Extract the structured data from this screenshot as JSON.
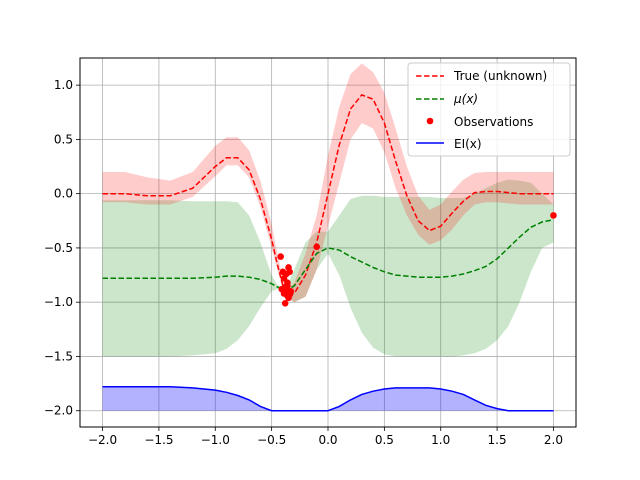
{
  "chart_data": {
    "type": "line",
    "title": "",
    "xlabel": "",
    "ylabel": "",
    "xlim": [
      -2.2,
      2.2
    ],
    "ylim": [
      -2.15,
      1.25
    ],
    "grid": true,
    "legend_position": "top-right",
    "xticks": [
      -2.0,
      -1.5,
      -1.0,
      -0.5,
      0.0,
      0.5,
      1.0,
      1.5,
      2.0
    ],
    "xtick_labels": [
      "−2.0",
      "−1.5",
      "−1.0",
      "−0.5",
      "0.0",
      "0.5",
      "1.0",
      "1.5",
      "2.0"
    ],
    "yticks": [
      -2.0,
      -1.5,
      -1.0,
      -0.5,
      0.0,
      0.5,
      1.0
    ],
    "ytick_labels": [
      "−2.0",
      "−1.5",
      "−1.0",
      "−0.5",
      "0.0",
      "0.5",
      "1.0"
    ],
    "legend": [
      {
        "label": "True (unknown)",
        "kind": "dashed",
        "color": "#ff0000"
      },
      {
        "label_pre": "μ",
        "label_italic": "(x)",
        "kind": "dashed",
        "color": "#008000"
      },
      {
        "label": "Observations",
        "kind": "dot",
        "color": "#ff0000"
      },
      {
        "label": "EI(x)",
        "kind": "solid",
        "color": "#0000ff"
      }
    ],
    "x": [
      -2.0,
      -1.8,
      -1.6,
      -1.4,
      -1.2,
      -1.0,
      -0.9,
      -0.8,
      -0.7,
      -0.6,
      -0.5,
      -0.45,
      -0.4,
      -0.35,
      -0.3,
      -0.2,
      -0.1,
      0.0,
      0.1,
      0.2,
      0.3,
      0.4,
      0.5,
      0.6,
      0.7,
      0.8,
      0.9,
      1.0,
      1.1,
      1.2,
      1.3,
      1.4,
      1.5,
      1.6,
      1.7,
      1.8,
      1.9,
      2.0
    ],
    "series": [
      {
        "name": "True (unknown)",
        "color": "#ff0000",
        "style": "dashed",
        "values": [
          0.0,
          0.0,
          -0.02,
          -0.02,
          0.05,
          0.25,
          0.33,
          0.33,
          0.22,
          -0.05,
          -0.42,
          -0.65,
          -0.85,
          -0.93,
          -0.92,
          -0.75,
          -0.45,
          0.0,
          0.45,
          0.78,
          0.91,
          0.87,
          0.65,
          0.3,
          -0.02,
          -0.25,
          -0.34,
          -0.3,
          -0.18,
          -0.07,
          0.01,
          0.02,
          0.02,
          0.01,
          0.0,
          0.0,
          0.0,
          0.0
        ],
        "band_lower": [
          -0.08,
          -0.08,
          -0.1,
          -0.1,
          -0.03,
          0.16,
          0.26,
          0.26,
          0.15,
          -0.12,
          -0.5,
          -0.7,
          -0.88,
          -0.97,
          -1.0,
          -0.95,
          -0.7,
          -0.3,
          0.1,
          0.5,
          0.65,
          0.6,
          0.38,
          0.05,
          -0.2,
          -0.38,
          -0.47,
          -0.43,
          -0.33,
          -0.2,
          -0.1,
          -0.08,
          -0.08,
          -0.09,
          -0.1,
          -0.1,
          -0.1,
          -0.1
        ],
        "band_upper": [
          0.2,
          0.2,
          0.15,
          0.12,
          0.2,
          0.44,
          0.52,
          0.52,
          0.4,
          0.12,
          -0.28,
          -0.55,
          -0.78,
          -0.87,
          -0.82,
          -0.55,
          -0.2,
          0.35,
          0.8,
          1.1,
          1.2,
          1.12,
          0.93,
          0.6,
          0.25,
          -0.02,
          -0.15,
          -0.1,
          0.02,
          0.13,
          0.19,
          0.2,
          0.2,
          0.2,
          0.2,
          0.2,
          0.2,
          0.2
        ]
      },
      {
        "name": "μ(x)",
        "color": "#008000",
        "style": "dashed",
        "values": [
          -0.78,
          -0.78,
          -0.78,
          -0.78,
          -0.78,
          -0.77,
          -0.76,
          -0.76,
          -0.77,
          -0.79,
          -0.83,
          -0.86,
          -0.88,
          -0.88,
          -0.85,
          -0.7,
          -0.55,
          -0.5,
          -0.52,
          -0.58,
          -0.63,
          -0.68,
          -0.72,
          -0.75,
          -0.76,
          -0.77,
          -0.77,
          -0.77,
          -0.76,
          -0.74,
          -0.71,
          -0.67,
          -0.6,
          -0.5,
          -0.4,
          -0.31,
          -0.26,
          -0.24
        ],
        "band_lower": [
          -1.5,
          -1.5,
          -1.5,
          -1.5,
          -1.49,
          -1.47,
          -1.43,
          -1.35,
          -1.22,
          -1.05,
          -0.9,
          -0.88,
          -0.9,
          -0.95,
          -1.0,
          -0.95,
          -0.7,
          -0.55,
          -0.75,
          -1.05,
          -1.28,
          -1.42,
          -1.48,
          -1.5,
          -1.5,
          -1.5,
          -1.5,
          -1.5,
          -1.5,
          -1.49,
          -1.47,
          -1.43,
          -1.35,
          -1.22,
          -1.0,
          -0.72,
          -0.5,
          -0.45
        ],
        "band_upper": [
          -0.06,
          -0.06,
          -0.06,
          -0.06,
          -0.07,
          -0.07,
          -0.07,
          -0.08,
          -0.2,
          -0.45,
          -0.75,
          -0.84,
          -0.86,
          -0.82,
          -0.7,
          -0.45,
          -0.35,
          -0.35,
          -0.2,
          -0.05,
          -0.02,
          -0.02,
          -0.03,
          -0.03,
          -0.03,
          -0.03,
          -0.03,
          -0.04,
          -0.04,
          -0.04,
          0.0,
          0.05,
          0.1,
          0.13,
          0.12,
          0.1,
          0.0,
          -0.1
        ]
      },
      {
        "name": "EI(x)",
        "color": "#0000ff",
        "style": "solid",
        "fill_to": -2.0,
        "values": [
          -1.78,
          -1.78,
          -1.78,
          -1.78,
          -1.79,
          -1.81,
          -1.83,
          -1.86,
          -1.9,
          -1.96,
          -2.0,
          -2.0,
          -2.0,
          -2.0,
          -2.0,
          -2.0,
          -2.0,
          -2.0,
          -1.96,
          -1.9,
          -1.85,
          -1.82,
          -1.8,
          -1.79,
          -1.79,
          -1.79,
          -1.79,
          -1.8,
          -1.82,
          -1.85,
          -1.9,
          -1.95,
          -1.98,
          -2.0,
          -2.0,
          -2.0,
          -2.0,
          -2.0
        ]
      }
    ],
    "observations": {
      "name": "Observations",
      "color": "#ff0000",
      "x": [
        -0.42,
        -0.4,
        -0.39,
        -0.38,
        -0.37,
        -0.36,
        -0.35,
        -0.34,
        -0.33,
        -0.41,
        -0.36,
        -0.38,
        -0.35,
        -0.37,
        -0.39,
        -0.34,
        -0.36,
        -0.1,
        2.0
      ],
      "y": [
        -0.58,
        -0.72,
        -0.78,
        -0.86,
        -0.9,
        -0.94,
        -0.96,
        -0.93,
        -0.9,
        -0.88,
        -0.82,
        -1.01,
        -0.68,
        -0.74,
        -0.92,
        -0.72,
        -0.85,
        -0.49,
        -0.2
      ]
    }
  }
}
